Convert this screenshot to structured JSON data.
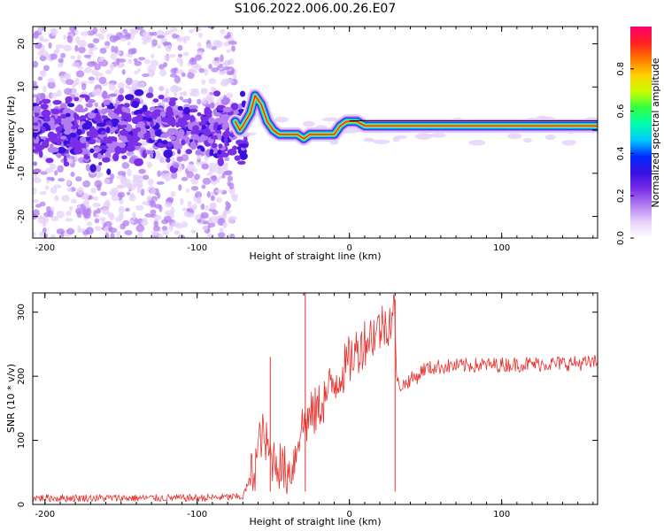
{
  "figure": {
    "title": "S106.2022.006.00.26.E07"
  },
  "colors": {
    "snr_line": "#e8302c",
    "colormap": [
      "#ffffff",
      "#e6d0fa",
      "#b27ef2",
      "#7a2ee8",
      "#3a10e0",
      "#0028ff",
      "#00c8ff",
      "#00ffb0",
      "#30ff40",
      "#c8ff00",
      "#ffd000",
      "#ff7a00",
      "#ff2020",
      "#ff006e"
    ]
  },
  "chart_data": [
    {
      "type": "heatmap",
      "title": "",
      "xlabel": "Height of straight line (km)",
      "ylabel": "Frequency (Hz)",
      "xlim": [
        -208,
        163
      ],
      "ylim": [
        -25,
        24
      ],
      "x_ticks": [
        -200,
        -100,
        0,
        100
      ],
      "y_ticks": [
        -20,
        -10,
        0,
        10,
        20
      ],
      "x_tick_labels": [
        "-200",
        "-100",
        "0",
        "100"
      ],
      "y_tick_labels": [
        "-20",
        "-10",
        "0",
        "10",
        "20"
      ],
      "grid": false,
      "colorbar": {
        "label": "Normalized spectral amplitude",
        "range": [
          0,
          1
        ],
        "ticks": [
          0.0,
          0.2,
          0.4,
          0.6,
          0.8
        ],
        "tick_labels": [
          "0.0",
          "0.2",
          "0.4",
          "0.6",
          "0.8"
        ]
      },
      "signal_track": {
        "x": [
          -75,
          -72,
          -70,
          -65,
          -62,
          -58,
          -54,
          -50,
          -46,
          -42,
          -38,
          -34,
          -30,
          -26,
          -22,
          -18,
          -14,
          -10,
          -6,
          -2,
          0,
          5,
          10,
          20,
          40,
          60,
          80,
          100,
          120,
          140,
          163
        ],
        "frequency_hz": [
          2,
          0,
          1,
          4,
          8,
          6,
          2,
          0,
          -1,
          -1,
          -1,
          -1,
          -2,
          -1,
          -1,
          -1,
          -1,
          -1,
          1,
          2,
          2,
          2,
          1,
          1,
          1,
          1,
          1,
          1,
          1,
          1,
          1
        ]
      }
    },
    {
      "type": "line",
      "title": "",
      "xlabel": "Height of straight line (km)",
      "ylabel": "SNR (10 * v/v)",
      "xlim": [
        -208,
        163
      ],
      "ylim": [
        0,
        330
      ],
      "x_ticks": [
        -200,
        -100,
        0,
        100
      ],
      "y_ticks": [
        0,
        100,
        200,
        300
      ],
      "x_tick_labels": [
        "-200",
        "-100",
        "0",
        "100"
      ],
      "y_tick_labels": [
        "0",
        "100",
        "200",
        "300"
      ],
      "grid": false,
      "series": [
        {
          "x": [
            -208,
            -150,
            -100,
            -70,
            -62,
            -58,
            -55,
            -52,
            -48,
            -44,
            -40,
            -36,
            -33,
            -30,
            -26,
            -22,
            -18,
            -14,
            -10,
            -6,
            -2,
            0,
            5,
            10,
            15,
            20,
            25,
            30,
            31,
            35,
            40,
            45,
            48,
            50,
            60,
            80,
            100,
            120,
            140,
            163
          ],
          "values": [
            10,
            10,
            10,
            12,
            60,
            110,
            95,
            75,
            70,
            55,
            50,
            70,
            115,
            125,
            135,
            145,
            160,
            175,
            190,
            205,
            215,
            225,
            240,
            255,
            265,
            275,
            285,
            300,
            190,
            185,
            195,
            200,
            210,
            212,
            215,
            217,
            218,
            219,
            220,
            221
          ],
          "spikes": [
            {
              "x": -52,
              "value": 230
            },
            {
              "x": -29,
              "value": 330
            },
            {
              "x": 30,
              "value": 320
            }
          ]
        }
      ]
    }
  ]
}
